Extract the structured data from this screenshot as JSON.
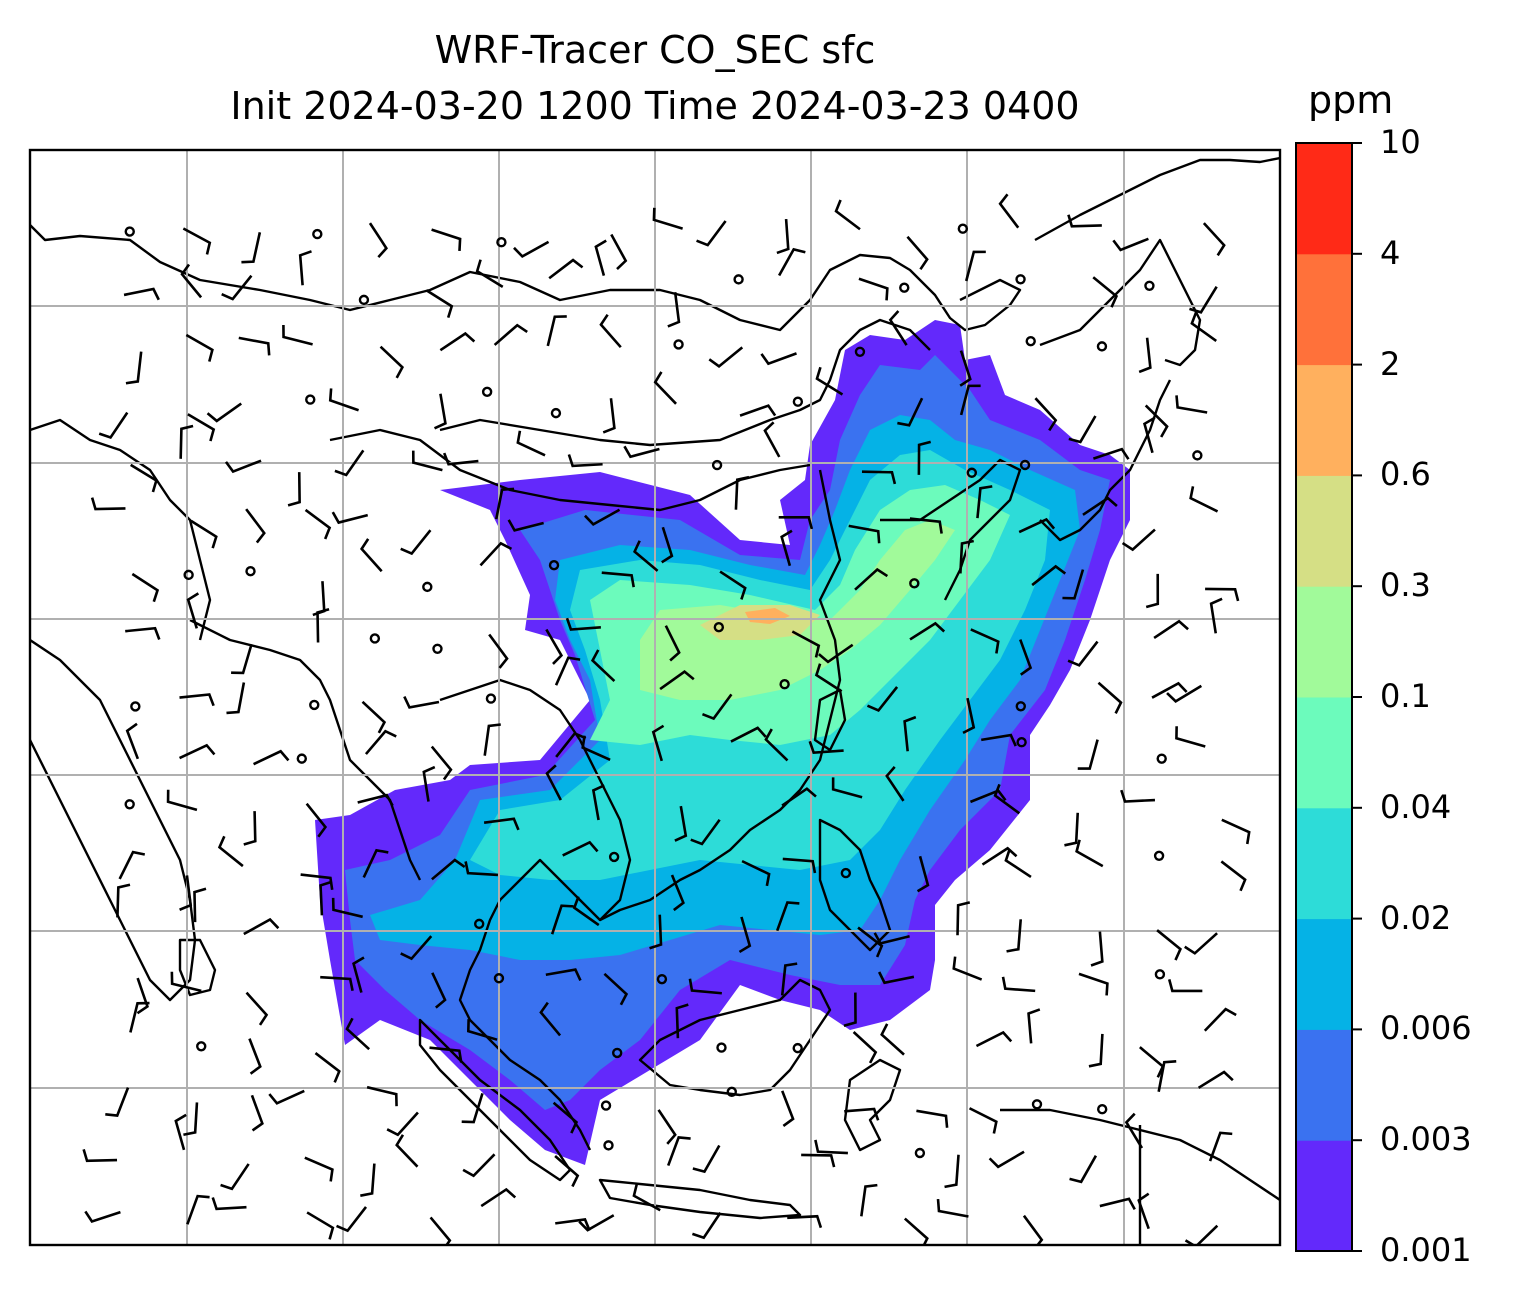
{
  "title": {
    "line1": "WRF-Tracer CO_SEC sfc",
    "line2": "Init 2024-03-20 1200 Time 2024-03-23 0400"
  },
  "colorbar": {
    "unit": "ppm",
    "levels": [
      "0.001",
      "0.003",
      "0.006",
      "0.02",
      "0.04",
      "0.1",
      "0.3",
      "0.6",
      "2",
      "4",
      "10"
    ],
    "colors": [
      "#6329fb",
      "#3a72f0",
      "#05b2e6",
      "#2ddcd8",
      "#6cfbbc",
      "#a1fa9a",
      "#d5df85",
      "#ffb05e",
      "#ff713a",
      "#ff2a17"
    ]
  },
  "map": {
    "background": "#ffffff",
    "coastline_color": "#000000",
    "gridline_color": "#b0b0b0",
    "wind_barbs": "shown",
    "calm_markers": "circles"
  }
}
